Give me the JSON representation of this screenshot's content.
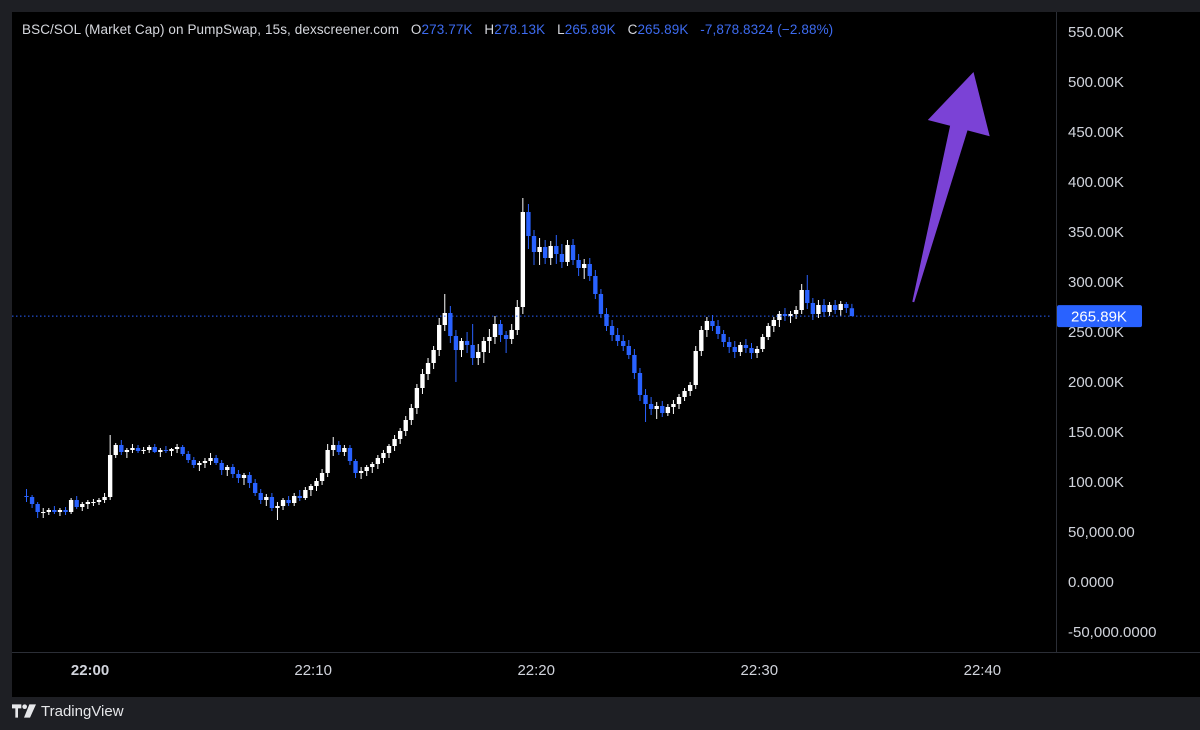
{
  "legend": {
    "symbol": "BSC/SOL (Market Cap) on PumpSwap, 15s, dexscreener.com",
    "open_label": "O",
    "open": "273.77K",
    "high_label": "H",
    "high": "278.13K",
    "low_label": "L",
    "low": "265.89K",
    "close_label": "C",
    "close": "265.89K",
    "change": "-7,878.8324 (−2.88%)"
  },
  "price_badge": "265.89K",
  "footer": {
    "brand": "TradingView",
    "logo_icon": "tradingview-logo-icon"
  },
  "colors": {
    "background": "#000000",
    "up": "#ffffff",
    "down": "#2962ff",
    "axis_text": "#d1d4dc",
    "annotation_arrow": "#7b42d6",
    "price_line": "#2962ff"
  },
  "chart_data": {
    "type": "candlestick",
    "y_axis_ticks": [
      "550.00K",
      "500.00K",
      "450.00K",
      "400.00K",
      "350.00K",
      "300.00K",
      "250.00K",
      "200.00K",
      "150.00K",
      "100.00K",
      "50,000.00",
      "0.0000",
      "-50,000.0000"
    ],
    "y_axis_tick_values": [
      550000,
      500000,
      450000,
      400000,
      350000,
      300000,
      250000,
      200000,
      150000,
      100000,
      50000,
      0,
      -50000
    ],
    "ylim": [
      -70000,
      570000
    ],
    "x_axis_ticks": [
      "22:00",
      "22:10",
      "22:20",
      "22:30",
      "22:40"
    ],
    "x_axis_tick_minutes": [
      0,
      10,
      20,
      30,
      40
    ],
    "xlim_minutes": [
      -3.5,
      43.3
    ],
    "last_price": 265890,
    "annotation": "up-arrow",
    "annotation_arrow": {
      "from": [
        36.9,
        280000
      ],
      "to": [
        39.6,
        510000
      ]
    },
    "candles_key": [
      "o",
      "h",
      "l",
      "c"
    ],
    "candles": [
      [
        86,
        93,
        80,
        85
      ],
      [
        85,
        87,
        74,
        78
      ],
      [
        78,
        80,
        64,
        70
      ],
      [
        70,
        74,
        64,
        70
      ],
      [
        70,
        74,
        67,
        72
      ],
      [
        72,
        76,
        68,
        70
      ],
      [
        70,
        74,
        66,
        72
      ],
      [
        72,
        75,
        67,
        70
      ],
      [
        70,
        84,
        68,
        82
      ],
      [
        82,
        86,
        73,
        75
      ],
      [
        75,
        80,
        71,
        78
      ],
      [
        78,
        82,
        73,
        80
      ],
      [
        80,
        83,
        76,
        80
      ],
      [
        80,
        84,
        77,
        82
      ],
      [
        82,
        89,
        79,
        85
      ],
      [
        85,
        147,
        82,
        127
      ],
      [
        127,
        139,
        124,
        137
      ],
      [
        137,
        142,
        127,
        130
      ],
      [
        130,
        134,
        124,
        132
      ],
      [
        132,
        138,
        129,
        134
      ],
      [
        134,
        137,
        129,
        131
      ],
      [
        131,
        135,
        128,
        132
      ],
      [
        132,
        137,
        129,
        135
      ],
      [
        135,
        138,
        129,
        130
      ],
      [
        130,
        134,
        125,
        132
      ],
      [
        132,
        136,
        129,
        131
      ],
      [
        131,
        134,
        126,
        133
      ],
      [
        133,
        138,
        129,
        135
      ],
      [
        135,
        137,
        126,
        128
      ],
      [
        128,
        131,
        119,
        122
      ],
      [
        122,
        125,
        114,
        117
      ],
      [
        117,
        121,
        111,
        119
      ],
      [
        119,
        124,
        114,
        121
      ],
      [
        121,
        129,
        117,
        124
      ],
      [
        124,
        127,
        117,
        119
      ],
      [
        119,
        122,
        107,
        112
      ],
      [
        112,
        117,
        106,
        115
      ],
      [
        115,
        118,
        104,
        108
      ],
      [
        108,
        112,
        99,
        104
      ],
      [
        104,
        109,
        97,
        107
      ],
      [
        107,
        110,
        94,
        99
      ],
      [
        99,
        103,
        86,
        89
      ],
      [
        89,
        93,
        78,
        82
      ],
      [
        82,
        88,
        76,
        85
      ],
      [
        85,
        89,
        71,
        74
      ],
      [
        74,
        80,
        62,
        76
      ],
      [
        76,
        84,
        72,
        82
      ],
      [
        82,
        86,
        76,
        79
      ],
      [
        79,
        89,
        76,
        86
      ],
      [
        86,
        92,
        81,
        84
      ],
      [
        84,
        95,
        82,
        92
      ],
      [
        92,
        98,
        86,
        96
      ],
      [
        96,
        104,
        91,
        101
      ],
      [
        101,
        113,
        97,
        109
      ],
      [
        109,
        138,
        105,
        132
      ],
      [
        132,
        145,
        126,
        137
      ],
      [
        137,
        141,
        127,
        130
      ],
      [
        130,
        137,
        126,
        134
      ],
      [
        134,
        137,
        117,
        121
      ],
      [
        121,
        123,
        104,
        109
      ],
      [
        109,
        115,
        103,
        111
      ],
      [
        111,
        117,
        106,
        115
      ],
      [
        115,
        120,
        109,
        118
      ],
      [
        118,
        127,
        113,
        124
      ],
      [
        124,
        132,
        119,
        129
      ],
      [
        129,
        138,
        124,
        136
      ],
      [
        136,
        147,
        131,
        143
      ],
      [
        143,
        154,
        138,
        151
      ],
      [
        151,
        166,
        146,
        162
      ],
      [
        162,
        178,
        157,
        174
      ],
      [
        174,
        198,
        168,
        194
      ],
      [
        194,
        213,
        188,
        208
      ],
      [
        208,
        224,
        202,
        219
      ],
      [
        219,
        236,
        213,
        232
      ],
      [
        232,
        264,
        226,
        257
      ],
      [
        257,
        288,
        251,
        269
      ],
      [
        269,
        276,
        239,
        246
      ],
      [
        246,
        252,
        200,
        232
      ],
      [
        232,
        244,
        225,
        241
      ],
      [
        241,
        250,
        229,
        237
      ],
      [
        237,
        258,
        217,
        224
      ],
      [
        224,
        238,
        217,
        230
      ],
      [
        230,
        245,
        219,
        241
      ],
      [
        241,
        253,
        229,
        245
      ],
      [
        245,
        266,
        238,
        258
      ],
      [
        258,
        262,
        240,
        247
      ],
      [
        247,
        251,
        229,
        243
      ],
      [
        243,
        258,
        238,
        252
      ],
      [
        252,
        282,
        247,
        275
      ],
      [
        275,
        384,
        268,
        370
      ],
      [
        370,
        378,
        333,
        346
      ],
      [
        346,
        352,
        317,
        330
      ],
      [
        330,
        344,
        317,
        335
      ],
      [
        335,
        342,
        318,
        324
      ],
      [
        324,
        341,
        317,
        336
      ],
      [
        336,
        347,
        318,
        328
      ],
      [
        328,
        338,
        314,
        320
      ],
      [
        320,
        342,
        316,
        337
      ],
      [
        337,
        343,
        317,
        322
      ],
      [
        322,
        328,
        306,
        314
      ],
      [
        314,
        323,
        303,
        318
      ],
      [
        318,
        324,
        301,
        306
      ],
      [
        306,
        312,
        283,
        288
      ],
      [
        288,
        293,
        264,
        268
      ],
      [
        268,
        274,
        251,
        256
      ],
      [
        256,
        262,
        241,
        247
      ],
      [
        247,
        254,
        236,
        241
      ],
      [
        241,
        247,
        231,
        236
      ],
      [
        236,
        242,
        223,
        227
      ],
      [
        227,
        233,
        203,
        209
      ],
      [
        209,
        214,
        181,
        187
      ],
      [
        187,
        193,
        160,
        178
      ],
      [
        178,
        185,
        167,
        173
      ],
      [
        173,
        180,
        163,
        176
      ],
      [
        176,
        181,
        165,
        169
      ],
      [
        169,
        178,
        166,
        175
      ],
      [
        175,
        182,
        168,
        178
      ],
      [
        178,
        188,
        173,
        185
      ],
      [
        185,
        194,
        181,
        191
      ],
      [
        191,
        200,
        186,
        197
      ],
      [
        197,
        236,
        193,
        231
      ],
      [
        231,
        256,
        226,
        252
      ],
      [
        252,
        265,
        245,
        261
      ],
      [
        261,
        267,
        251,
        256
      ],
      [
        256,
        262,
        243,
        248
      ],
      [
        248,
        252,
        235,
        240
      ],
      [
        240,
        245,
        229,
        235
      ],
      [
        235,
        241,
        224,
        230
      ],
      [
        230,
        240,
        226,
        237
      ],
      [
        237,
        243,
        229,
        234
      ],
      [
        234,
        239,
        223,
        229
      ],
      [
        229,
        236,
        224,
        233
      ],
      [
        233,
        248,
        230,
        245
      ],
      [
        245,
        259,
        242,
        256
      ],
      [
        256,
        265,
        250,
        262
      ],
      [
        262,
        271,
        255,
        268
      ],
      [
        268,
        274,
        261,
        266
      ],
      [
        266,
        271,
        259,
        268
      ],
      [
        268,
        276,
        263,
        272
      ],
      [
        272,
        298,
        268,
        292
      ],
      [
        292,
        307,
        273,
        279
      ],
      [
        279,
        284,
        262,
        268
      ],
      [
        268,
        282,
        264,
        277
      ],
      [
        277,
        283,
        265,
        270
      ],
      [
        270,
        280,
        266,
        277
      ],
      [
        277,
        282,
        268,
        272
      ],
      [
        272,
        281,
        266,
        278
      ],
      [
        278,
        280,
        269,
        274
      ],
      [
        273.77,
        278.13,
        265.89,
        265.89
      ]
    ]
  }
}
